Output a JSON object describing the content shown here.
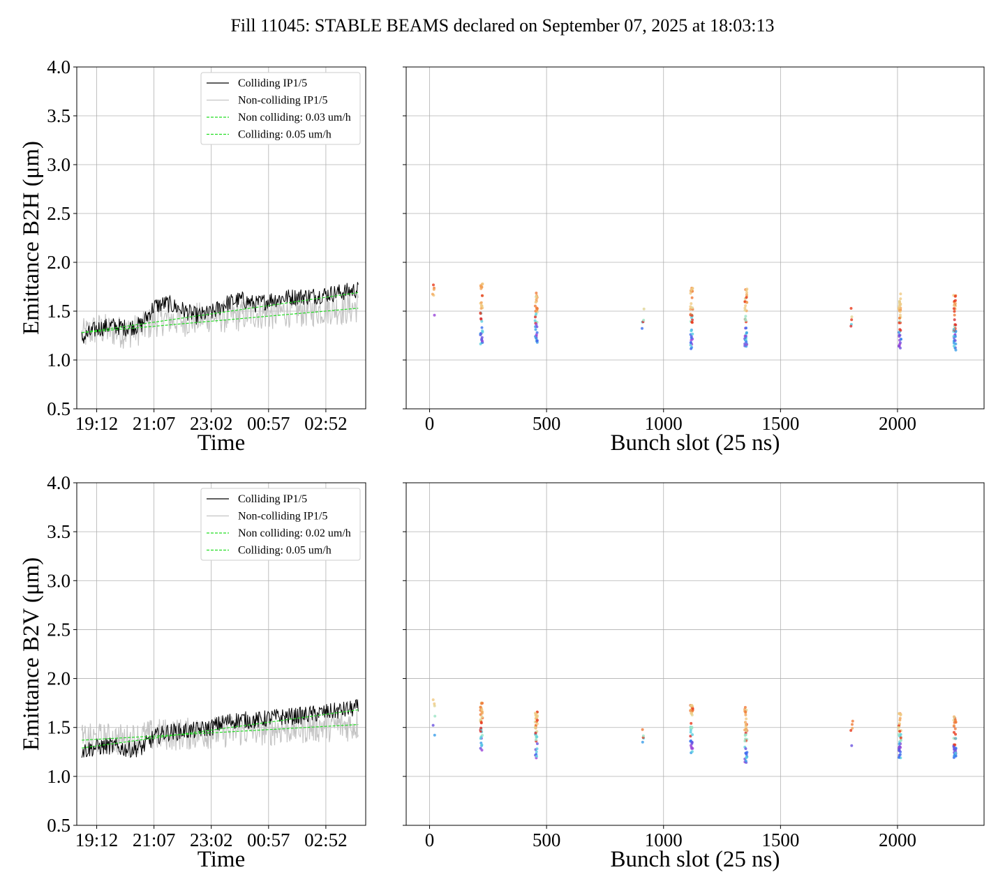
{
  "title": "Fill 11045: STABLE BEAMS declared on September 07, 2025 at 18:03:13",
  "chart_data": [
    {
      "id": "b2h-time",
      "type": "line",
      "xlabel": "Time",
      "ylabel": "Emittance B2H (μm)",
      "xticks": [
        "19:12",
        "21:07",
        "23:02",
        "00:57",
        "02:52"
      ],
      "xlim": [
        -40,
        540
      ],
      "ylim": [
        0.5,
        4.0
      ],
      "yticks": [
        "0.5",
        "1.0",
        "1.5",
        "2.0",
        "2.5",
        "3.0",
        "3.5",
        "4.0"
      ],
      "grid": true,
      "legend_position": "top-right",
      "legend": [
        "Colliding IP1/5",
        "Non-colliding IP1/5",
        "Non colliding: 0.03 um/h",
        "Colliding: 0.05 um/h"
      ],
      "series": [
        {
          "name": "Colliding IP1/5",
          "color": "#000000",
          "x": [
            -30,
            0,
            30,
            60,
            90,
            115,
            140,
            170,
            200,
            230,
            260,
            290,
            320,
            350,
            380,
            410,
            440,
            470,
            500,
            525
          ],
          "y": [
            1.22,
            1.32,
            1.35,
            1.33,
            1.36,
            1.55,
            1.58,
            1.52,
            1.45,
            1.48,
            1.58,
            1.62,
            1.57,
            1.62,
            1.64,
            1.65,
            1.66,
            1.68,
            1.7,
            1.72
          ]
        },
        {
          "name": "Non-colliding IP1/5",
          "color": "#bbbbbb",
          "x": [
            -30,
            0,
            30,
            60,
            90,
            115,
            140,
            170,
            200,
            230,
            260,
            290,
            320,
            350,
            380,
            410,
            440,
            470,
            500,
            525
          ],
          "y": [
            1.25,
            1.32,
            1.3,
            1.28,
            1.32,
            1.4,
            1.42,
            1.4,
            1.42,
            1.45,
            1.44,
            1.46,
            1.48,
            1.47,
            1.5,
            1.5,
            1.51,
            1.53,
            1.52,
            1.55
          ]
        },
        {
          "name": "Non colliding: 0.03 um/h",
          "color": "#22dd22",
          "dashed": true,
          "x": [
            -30,
            525
          ],
          "y": [
            1.28,
            1.53
          ]
        },
        {
          "name": "Colliding: 0.05 um/h",
          "color": "#22dd22",
          "dashed": true,
          "x": [
            -30,
            525
          ],
          "y": [
            1.28,
            1.69
          ]
        }
      ]
    },
    {
      "id": "b2h-bunch",
      "type": "scatter",
      "xlabel": "Bunch slot (25 ns)",
      "xticks": [
        0,
        500,
        1000,
        1500,
        2000
      ],
      "xlim": [
        -100,
        2370
      ],
      "ylim": [
        0.5,
        4.0
      ],
      "grid": true,
      "groups": [
        {
          "x": 18,
          "ymin": 1.4,
          "ymax": 1.8,
          "n": 6
        },
        {
          "x": 222,
          "ymin": 1.15,
          "ymax": 1.8,
          "n": 36
        },
        {
          "x": 456,
          "ymin": 1.18,
          "ymax": 1.74,
          "n": 36
        },
        {
          "x": 912,
          "ymin": 1.28,
          "ymax": 1.53,
          "n": 5
        },
        {
          "x": 1120,
          "ymin": 1.11,
          "ymax": 1.76,
          "n": 40
        },
        {
          "x": 1352,
          "ymin": 1.13,
          "ymax": 1.73,
          "n": 40
        },
        {
          "x": 1805,
          "ymin": 1.24,
          "ymax": 1.54,
          "n": 5
        },
        {
          "x": 2010,
          "ymin": 1.1,
          "ymax": 1.68,
          "n": 40
        },
        {
          "x": 2245,
          "ymin": 1.1,
          "ymax": 1.67,
          "n": 40
        }
      ]
    },
    {
      "id": "b2v-time",
      "type": "line",
      "xlabel": "Time",
      "ylabel": "Emittance B2V (μm)",
      "xticks": [
        "19:12",
        "21:07",
        "23:02",
        "00:57",
        "02:52"
      ],
      "xlim": [
        -40,
        540
      ],
      "ylim": [
        0.5,
        4.0
      ],
      "yticks": [
        "0.5",
        "1.0",
        "1.5",
        "2.0",
        "2.5",
        "3.0",
        "3.5",
        "4.0"
      ],
      "grid": true,
      "legend_position": "top-right",
      "legend": [
        "Colliding IP1/5",
        "Non-colliding IP1/5",
        "Non colliding: 0.02 um/h",
        "Colliding: 0.05 um/h"
      ],
      "series": [
        {
          "name": "Colliding IP1/5",
          "color": "#000000",
          "x": [
            -30,
            0,
            30,
            60,
            90,
            115,
            140,
            170,
            200,
            230,
            260,
            290,
            320,
            350,
            380,
            410,
            440,
            470,
            500,
            525
          ],
          "y": [
            1.26,
            1.3,
            1.31,
            1.28,
            1.29,
            1.4,
            1.45,
            1.46,
            1.47,
            1.5,
            1.56,
            1.58,
            1.57,
            1.6,
            1.61,
            1.62,
            1.64,
            1.66,
            1.68,
            1.7
          ]
        },
        {
          "name": "Non-colliding IP1/5",
          "color": "#bbbbbb",
          "x": [
            -30,
            0,
            30,
            60,
            90,
            115,
            140,
            170,
            200,
            230,
            260,
            290,
            320,
            350,
            380,
            410,
            440,
            470,
            500,
            525
          ],
          "y": [
            1.36,
            1.38,
            1.38,
            1.37,
            1.4,
            1.42,
            1.43,
            1.43,
            1.44,
            1.45,
            1.46,
            1.47,
            1.48,
            1.48,
            1.49,
            1.5,
            1.51,
            1.52,
            1.52,
            1.53
          ]
        },
        {
          "name": "Non colliding: 0.02 um/h",
          "color": "#22dd22",
          "dashed": true,
          "x": [
            -30,
            525
          ],
          "y": [
            1.37,
            1.53
          ]
        },
        {
          "name": "Colliding: 0.05 um/h",
          "color": "#22dd22",
          "dashed": true,
          "x": [
            -30,
            525
          ],
          "y": [
            1.29,
            1.68
          ]
        }
      ]
    },
    {
      "id": "b2v-bunch",
      "type": "scatter",
      "xlabel": "Bunch slot (25 ns)",
      "xticks": [
        0,
        500,
        1000,
        1500,
        2000
      ],
      "xlim": [
        -100,
        2370
      ],
      "ylim": [
        0.5,
        4.0
      ],
      "grid": true,
      "groups": [
        {
          "x": 18,
          "ymin": 1.42,
          "ymax": 1.8,
          "n": 6
        },
        {
          "x": 222,
          "ymin": 1.22,
          "ymax": 1.76,
          "n": 36
        },
        {
          "x": 456,
          "ymin": 1.18,
          "ymax": 1.68,
          "n": 36
        },
        {
          "x": 912,
          "ymin": 1.31,
          "ymax": 1.53,
          "n": 5
        },
        {
          "x": 1120,
          "ymin": 1.23,
          "ymax": 1.74,
          "n": 40
        },
        {
          "x": 1352,
          "ymin": 1.14,
          "ymax": 1.71,
          "n": 40
        },
        {
          "x": 1805,
          "ymin": 1.29,
          "ymax": 1.6,
          "n": 5
        },
        {
          "x": 2010,
          "ymin": 1.17,
          "ymax": 1.67,
          "n": 40
        },
        {
          "x": 2245,
          "ymin": 1.15,
          "ymax": 1.62,
          "n": 40
        }
      ]
    }
  ]
}
